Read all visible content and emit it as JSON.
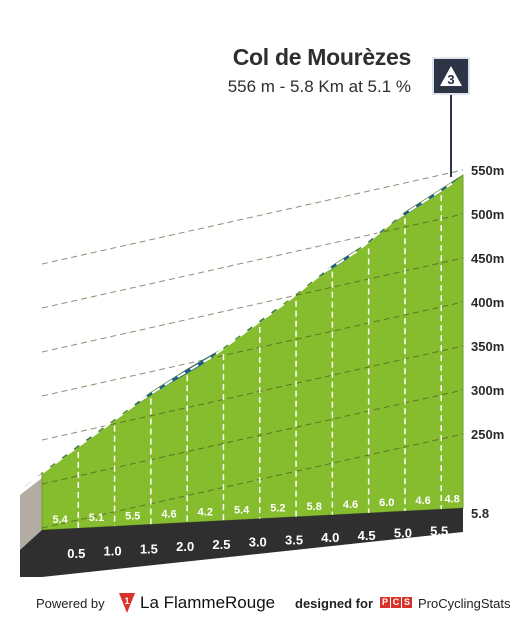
{
  "climb": {
    "name": "Col de Mourèzes",
    "stats": "556 m - 5.8 Km at 5.1 %",
    "category_badge": "3"
  },
  "chart_data": {
    "type": "area",
    "title": "Col de Mourèzes",
    "subtitle": "556 m - 5.8 Km at 5.1 %",
    "x_unit": "km",
    "y_unit": "m",
    "ylim": [
      250,
      550
    ],
    "y_ticks": [
      "250m",
      "300m",
      "350m",
      "400m",
      "450m",
      "500m",
      "550m"
    ],
    "x_ticks": [
      "0.5",
      "1.0",
      "1.5",
      "2.0",
      "2.5",
      "3.0",
      "3.5",
      "4.0",
      "4.5",
      "5.0",
      "5.5"
    ],
    "x_end_label": "5.8",
    "distance_km": [
      0,
      0.5,
      1.0,
      1.5,
      2.0,
      2.5,
      3.0,
      3.5,
      4.0,
      4.5,
      5.0,
      5.5,
      5.8
    ],
    "elevation_m": [
      260,
      287,
      313,
      340,
      363,
      384,
      411,
      437,
      466,
      489,
      519,
      542,
      556
    ],
    "segment_gradients": [
      "5.4",
      "5.1",
      "5.5",
      "4.6",
      "4.2",
      "5.4",
      "5.2",
      "5.8",
      "4.6",
      "6.0",
      "4.6",
      "4.8"
    ],
    "colors": {
      "fill": "#86bd2f",
      "road": "#1e5c8c",
      "road_stripe": "#ffffff",
      "base": "#2f2f2f",
      "side": "#b3aca3"
    }
  },
  "footer": {
    "powered_by": "Powered by",
    "brand": "La FlammeRouge",
    "designed_for": "designed for",
    "pcs_letters": [
      "P",
      "C",
      "S"
    ],
    "pcs_name": "ProCyclingStats"
  }
}
